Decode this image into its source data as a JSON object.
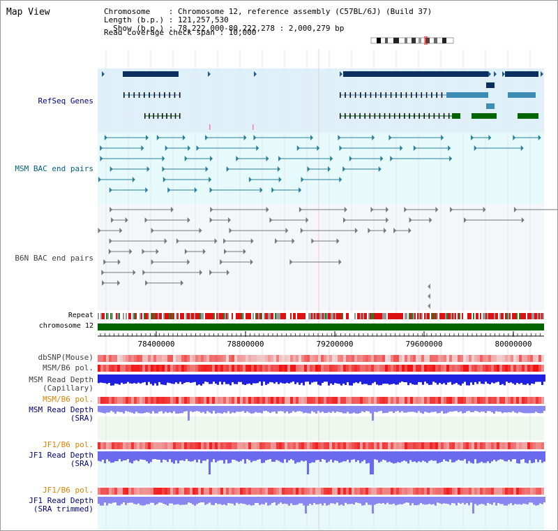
{
  "title": "Map View",
  "info": {
    "chromosome": "Chromosome    : Chromosome 12, reference assembly (C57BL/6J) (Build 37)",
    "length": "Length (b.p.) : 121,257,530",
    "show": "  Show (b.p.) : 78,222,000-80,222,278 : 2,000,279 bp",
    "read_coverage": "Read coverage check span : 10,000"
  },
  "labels": {
    "refseq": "RefSeq Genes",
    "msm_bac": "MSM BAC end pairs",
    "b6n_bac": "B6N BAC end pairs",
    "repeat": "Repeat",
    "chromosome": "chromosome 12",
    "dbsnp": "dbSNP(Mouse)",
    "msm_b6_pol_1": "MSM/B6 pol.",
    "msm_depth_cap": "MSM Read Depth\n(Capillary)",
    "msm_b6_pol_2": "MSM/B6 pol.",
    "msm_depth_sra": "MSM Read Depth\n(SRA)",
    "jf1_b6_pol_1": "JF1/B6 pol.",
    "jf1_depth_sra": "JF1 Read Depth\n(SRA)",
    "jf1_b6_pol_2": "JF1/B6 pol.",
    "jf1_depth_trim": "JF1 Read Depth\n(SRA trimmed)"
  },
  "axis": {
    "ticks": [
      "78400000",
      "78800000",
      "79200000",
      "79600000",
      "80000000"
    ]
  },
  "colors": {
    "refseq_label": "#00008b",
    "msm_label": "#006080",
    "b6n_label": "#404040",
    "pol_label": "#e08000",
    "depth_label": "#000080",
    "chromosome_bar": "#006400",
    "repeat": "#e00000"
  }
}
